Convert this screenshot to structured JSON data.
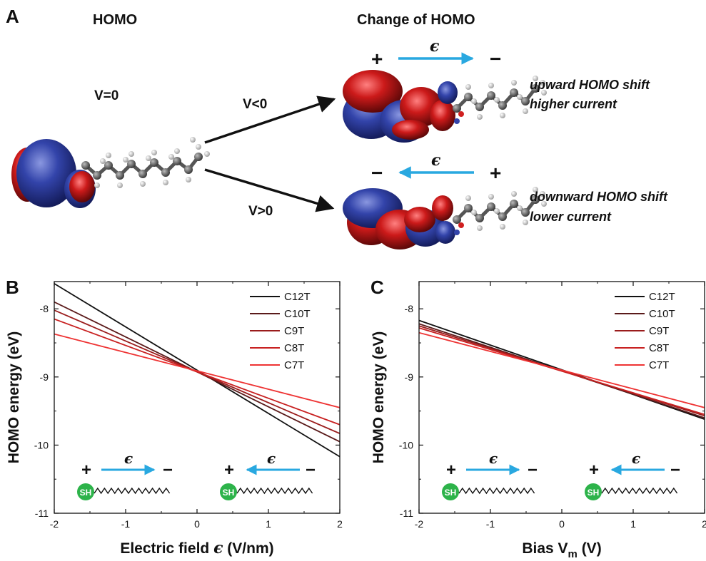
{
  "panelA": {
    "panel_label": "A",
    "homo_title": "HOMO",
    "change_title": "Change of HOMO",
    "v_zero": "V=0",
    "v_neg": "V<0",
    "v_pos": "V>0",
    "field_symbol": "ϵ",
    "plus": "+",
    "minus": "−",
    "upper_caption_1": "upward HOMO shift",
    "upper_caption_2": "higher current",
    "lower_caption_1": "downward HOMO shift",
    "lower_caption_2": "lower current",
    "colors": {
      "orbital_blue": "#3344aa",
      "orbital_red": "#cc1a1a",
      "arrow_blue": "#29a8e0",
      "sh_green": "#2db34a"
    }
  },
  "chart_data": [
    {
      "panel_label": "B",
      "type": "line",
      "xlabel_prefix": "Electric field ",
      "xlabel_symbol": "ϵ",
      "xlabel_suffix": " (V/nm)",
      "ylabel": "HOMO energy (eV)",
      "xlim": [
        -2,
        2
      ],
      "ylim": [
        -11,
        -7.6
      ],
      "xticks": [
        -2,
        -1,
        0,
        1,
        2
      ],
      "yticks": [
        -11,
        -10,
        -9,
        -8
      ],
      "legend_position": "top-right",
      "sh_label": "SH",
      "series": [
        {
          "name": "C12T",
          "color": "#111111",
          "x": [
            -2,
            2
          ],
          "y": [
            -7.63,
            -10.17
          ]
        },
        {
          "name": "C10T",
          "color": "#5a1a1a",
          "x": [
            -2,
            2
          ],
          "y": [
            -7.9,
            -9.95
          ]
        },
        {
          "name": "C9T",
          "color": "#9a1c1c",
          "x": [
            -2,
            2
          ],
          "y": [
            -8.02,
            -9.83
          ]
        },
        {
          "name": "C8T",
          "color": "#c82020",
          "x": [
            -2,
            2
          ],
          "y": [
            -8.15,
            -9.7
          ]
        },
        {
          "name": "C7T",
          "color": "#ee3333",
          "x": [
            -2,
            2
          ],
          "y": [
            -8.37,
            -9.45
          ]
        }
      ]
    },
    {
      "panel_label": "C",
      "type": "line",
      "xlabel_prefix": "Bias V",
      "xlabel_sub": "m",
      "xlabel_suffix": " (V)",
      "ylabel": "HOMO energy (eV)",
      "xlim": [
        -2,
        2
      ],
      "ylim": [
        -11,
        -7.6
      ],
      "xticks": [
        -2,
        -1,
        0,
        1,
        2
      ],
      "yticks": [
        -11,
        -10,
        -9,
        -8
      ],
      "legend_position": "top-right",
      "sh_label": "SH",
      "series": [
        {
          "name": "C12T",
          "color": "#111111",
          "x": [
            -2,
            2
          ],
          "y": [
            -8.17,
            -9.62
          ]
        },
        {
          "name": "C10T",
          "color": "#5a1a1a",
          "x": [
            -2,
            2
          ],
          "y": [
            -8.22,
            -9.6
          ]
        },
        {
          "name": "C9T",
          "color": "#9a1c1c",
          "x": [
            -2,
            2
          ],
          "y": [
            -8.25,
            -9.57
          ]
        },
        {
          "name": "C8T",
          "color": "#c82020",
          "x": [
            -2,
            2
          ],
          "y": [
            -8.28,
            -9.55
          ]
        },
        {
          "name": "C7T",
          "color": "#ee3333",
          "x": [
            -2,
            2
          ],
          "y": [
            -8.35,
            -9.45
          ]
        }
      ]
    }
  ]
}
